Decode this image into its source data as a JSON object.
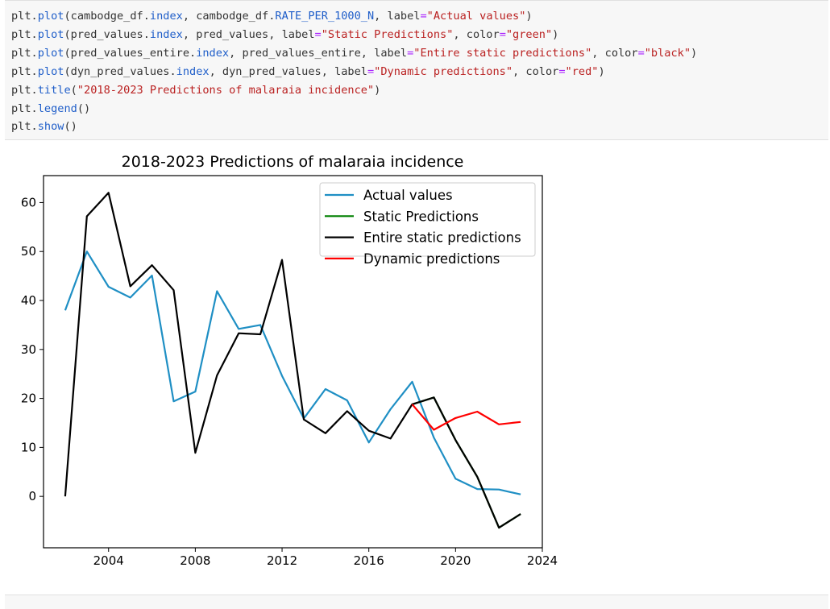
{
  "code_cell": {
    "lines": [
      [
        {
          "t": "plt.",
          "c": "p"
        },
        {
          "t": "plot",
          "c": "fn"
        },
        {
          "t": "(cambodge_df.",
          "c": "p"
        },
        {
          "t": "index",
          "c": "fn"
        },
        {
          "t": ", cambodge_df.",
          "c": "p"
        },
        {
          "t": "RATE_PER_1000_N",
          "c": "fn"
        },
        {
          "t": ", label",
          "c": "p"
        },
        {
          "t": "=",
          "c": "op"
        },
        {
          "t": "\"Actual values\"",
          "c": "str"
        },
        {
          "t": ")",
          "c": "p"
        }
      ],
      [
        {
          "t": "plt.",
          "c": "p"
        },
        {
          "t": "plot",
          "c": "fn"
        },
        {
          "t": "(pred_values.",
          "c": "p"
        },
        {
          "t": "index",
          "c": "fn"
        },
        {
          "t": ", pred_values, label",
          "c": "p"
        },
        {
          "t": "=",
          "c": "op"
        },
        {
          "t": "\"Static Predictions\"",
          "c": "str"
        },
        {
          "t": ", color",
          "c": "p"
        },
        {
          "t": "=",
          "c": "op"
        },
        {
          "t": "\"green\"",
          "c": "str"
        },
        {
          "t": ")",
          "c": "p"
        }
      ],
      [
        {
          "t": "plt.",
          "c": "p"
        },
        {
          "t": "plot",
          "c": "fn"
        },
        {
          "t": "(pred_values_entire.",
          "c": "p"
        },
        {
          "t": "index",
          "c": "fn"
        },
        {
          "t": ", pred_values_entire, label",
          "c": "p"
        },
        {
          "t": "=",
          "c": "op"
        },
        {
          "t": "\"Entire static predictions\"",
          "c": "str"
        },
        {
          "t": ", color",
          "c": "p"
        },
        {
          "t": "=",
          "c": "op"
        },
        {
          "t": "\"black\"",
          "c": "str"
        },
        {
          "t": ")",
          "c": "p"
        }
      ],
      [
        {
          "t": "plt.",
          "c": "p"
        },
        {
          "t": "plot",
          "c": "fn"
        },
        {
          "t": "(dyn_pred_values.",
          "c": "p"
        },
        {
          "t": "index",
          "c": "fn"
        },
        {
          "t": ", dyn_pred_values, label",
          "c": "p"
        },
        {
          "t": "=",
          "c": "op"
        },
        {
          "t": "\"Dynamic predictions\"",
          "c": "str"
        },
        {
          "t": ", color",
          "c": "p"
        },
        {
          "t": "=",
          "c": "op"
        },
        {
          "t": "\"red\"",
          "c": "str"
        },
        {
          "t": ")",
          "c": "p"
        }
      ],
      [
        {
          "t": "plt.",
          "c": "p"
        },
        {
          "t": "title",
          "c": "fn"
        },
        {
          "t": "(",
          "c": "p"
        },
        {
          "t": "\"2018-2023 Predictions of malaraia incidence\"",
          "c": "str"
        },
        {
          "t": ")",
          "c": "p"
        }
      ],
      [
        {
          "t": "plt.",
          "c": "p"
        },
        {
          "t": "legend",
          "c": "fn"
        },
        {
          "t": "()",
          "c": "p"
        }
      ],
      [
        {
          "t": "plt.",
          "c": "p"
        },
        {
          "t": "show",
          "c": "fn"
        },
        {
          "t": "()",
          "c": "p"
        }
      ]
    ]
  },
  "chart_data": {
    "type": "line",
    "title": "2018-2023 Predictions of malaraia incidence",
    "xlabel": "",
    "ylabel": "",
    "xlim": [
      2001,
      2024
    ],
    "ylim": [
      -10.5,
      65.5
    ],
    "xticks": [
      2004,
      2008,
      2012,
      2016,
      2020,
      2024
    ],
    "yticks": [
      0,
      10,
      20,
      30,
      40,
      50,
      60
    ],
    "grid": false,
    "legend_position": "top-right",
    "series": [
      {
        "name": "Actual values",
        "color": "#1f8fc4",
        "x": [
          2002,
          2003,
          2004,
          2005,
          2006,
          2007,
          2008,
          2009,
          2010,
          2011,
          2012,
          2013,
          2014,
          2015,
          2016,
          2017,
          2018,
          2019,
          2020,
          2021,
          2022,
          2023
        ],
        "y": [
          38,
          50,
          42.8,
          40.6,
          45.1,
          19.4,
          21.4,
          41.9,
          34.2,
          35,
          24.6,
          15.9,
          21.9,
          19.6,
          11,
          17.8,
          23.4,
          12,
          3.6,
          1.5,
          1.4,
          0.4
        ]
      },
      {
        "name": "Static Predictions",
        "color": "green",
        "x": [
          2018,
          2019,
          2020,
          2021,
          2022,
          2023
        ],
        "y": [
          18.8,
          20.2,
          11.5,
          4,
          -6.4,
          -3.6
        ]
      },
      {
        "name": "Entire static predictions",
        "color": "black",
        "x": [
          2002,
          2003,
          2004,
          2005,
          2006,
          2007,
          2008,
          2009,
          2010,
          2011,
          2012,
          2013,
          2014,
          2015,
          2016,
          2017,
          2018,
          2019,
          2020,
          2021,
          2022,
          2023
        ],
        "y": [
          0,
          57.2,
          62,
          42.9,
          47.2,
          42.1,
          8.9,
          24.7,
          33.3,
          33.1,
          48.3,
          15.7,
          12.9,
          17.4,
          13.4,
          11.8,
          18.8,
          20.2,
          11.5,
          4,
          -6.4,
          -3.6
        ]
      },
      {
        "name": "Dynamic predictions",
        "color": "red",
        "x": [
          2018,
          2019,
          2020,
          2021,
          2022,
          2023
        ],
        "y": [
          18.8,
          13.6,
          16,
          17.3,
          14.7,
          15.2
        ]
      }
    ]
  }
}
